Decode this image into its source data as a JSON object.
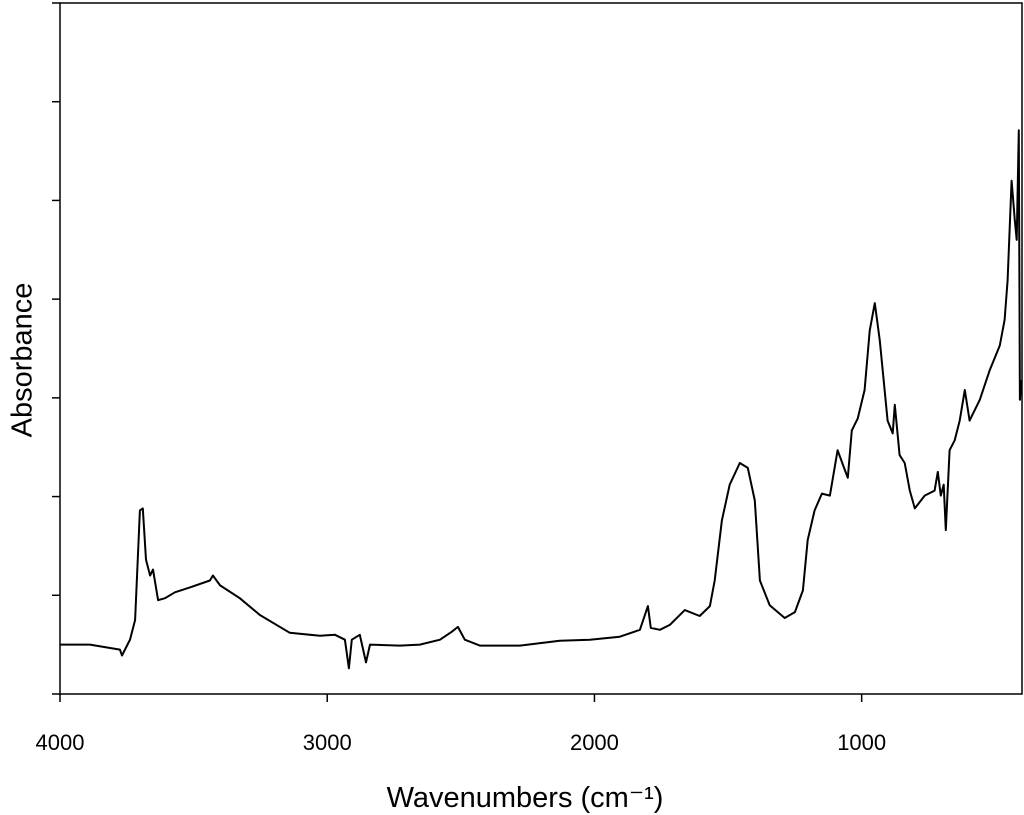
{
  "chart_data": {
    "type": "line",
    "x_label": "Wavenumbers (cm⁻¹)",
    "y_label": "Absorbance",
    "xlim": [
      4000,
      400
    ],
    "xticks": [
      4000,
      3000,
      2000,
      1000
    ],
    "ylim": [
      0,
      7
    ],
    "yticks": [
      0,
      1,
      2,
      3,
      4,
      5,
      6,
      7
    ],
    "ytick_labels": false,
    "series": [
      {
        "color": "#000000",
        "x": [
          4000,
          3888,
          3776,
          3768,
          3738,
          3719,
          3701,
          3690,
          3678,
          3663,
          3652,
          3633,
          3607,
          3570,
          3514,
          3439,
          3428,
          3401,
          3327,
          3252,
          3140,
          3027,
          2971,
          2934,
          2919,
          2908,
          2878,
          2855,
          2840,
          2728,
          2653,
          2578,
          2534,
          2511,
          2485,
          2429,
          2279,
          2130,
          2017,
          1905,
          1830,
          1800,
          1789,
          1755,
          1718,
          1662,
          1606,
          1568,
          1550,
          1523,
          1494,
          1456,
          1426,
          1400,
          1381,
          1344,
          1288,
          1250,
          1220,
          1202,
          1176,
          1149,
          1119,
          1090,
          1063,
          1052,
          1037,
          1015,
          989,
          970,
          951,
          932,
          903,
          884,
          876,
          858,
          839,
          820,
          801,
          764,
          727,
          715,
          704,
          693,
          685,
          671,
          652,
          633,
          614,
          596,
          558,
          521,
          483,
          465,
          454,
          439,
          427,
          420,
          412,
          408,
          401
        ],
        "values": [
          0.5,
          0.5,
          0.45,
          0.39,
          0.55,
          0.75,
          1.86,
          1.88,
          1.36,
          1.2,
          1.26,
          0.95,
          0.97,
          1.03,
          1.08,
          1.15,
          1.2,
          1.1,
          0.97,
          0.8,
          0.62,
          0.59,
          0.6,
          0.55,
          0.26,
          0.55,
          0.6,
          0.32,
          0.5,
          0.49,
          0.5,
          0.55,
          0.63,
          0.68,
          0.55,
          0.49,
          0.49,
          0.54,
          0.55,
          0.58,
          0.65,
          0.89,
          0.67,
          0.65,
          0.7,
          0.85,
          0.79,
          0.89,
          1.15,
          1.76,
          2.12,
          2.34,
          2.29,
          1.96,
          1.15,
          0.9,
          0.77,
          0.83,
          1.05,
          1.56,
          1.86,
          2.03,
          2.01,
          2.47,
          2.27,
          2.19,
          2.67,
          2.79,
          3.08,
          3.68,
          3.96,
          3.58,
          2.77,
          2.64,
          2.93,
          2.42,
          2.34,
          2.06,
          1.88,
          2.01,
          2.06,
          2.25,
          2.01,
          2.12,
          1.66,
          2.47,
          2.57,
          2.77,
          3.08,
          2.77,
          2.98,
          3.28,
          3.53,
          3.79,
          4.19,
          5.2,
          4.8,
          4.6,
          5.71,
          2.98,
          3.18
        ]
      }
    ]
  }
}
